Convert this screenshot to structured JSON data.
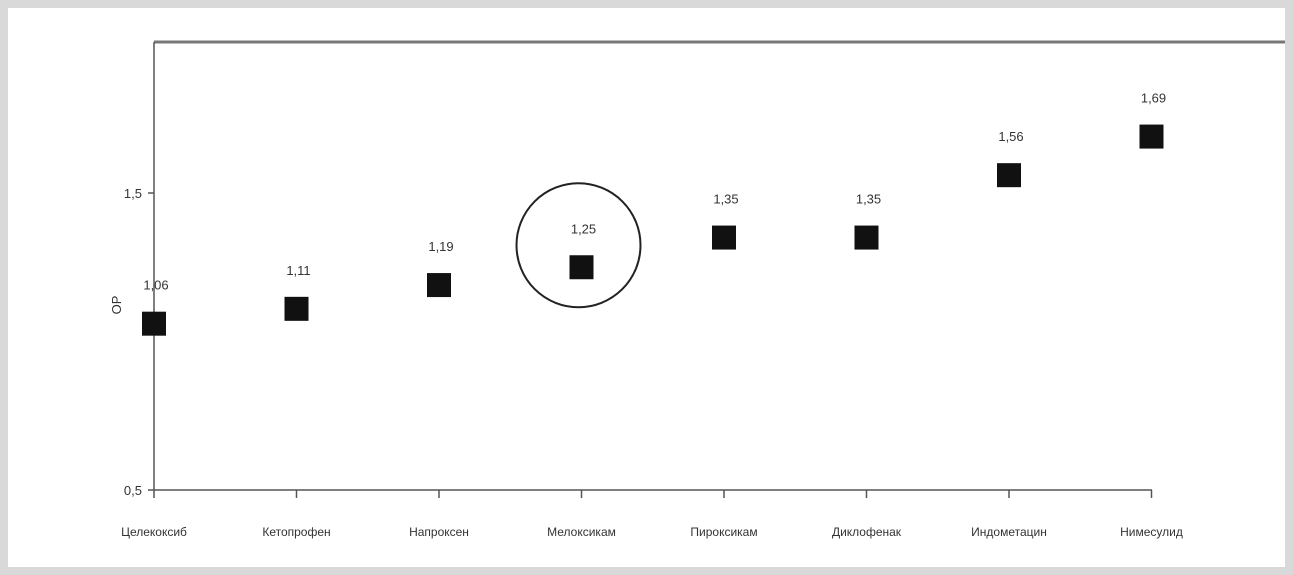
{
  "chart_data": {
    "type": "scatter",
    "title": "",
    "xlabel": "",
    "ylabel": "OP",
    "ylim": [
      0.5,
      1.8
    ],
    "yticks": [
      {
        "value": 1.5,
        "label": "1,5"
      },
      {
        "value": 0.5,
        "label": "0,5"
      }
    ],
    "categories": [
      "Целекоксиб",
      "Кетопрофен",
      "Напроксен",
      "Мелоксикам",
      "Пироксикам",
      "Диклофенак",
      "Индометацин",
      "Нимесулид"
    ],
    "values": [
      1.06,
      1.11,
      1.19,
      1.25,
      1.35,
      1.35,
      1.56,
      1.69
    ],
    "value_labels": [
      "1,06",
      "1,11",
      "1,19",
      "1,25",
      "1,35",
      "1,35",
      "1,56",
      "1,69"
    ],
    "highlighted_category": "Мелоксикам",
    "grid": false,
    "legend": "none",
    "colors": {
      "marker": "#111111",
      "axis": "#555555",
      "text": "#333333"
    }
  }
}
